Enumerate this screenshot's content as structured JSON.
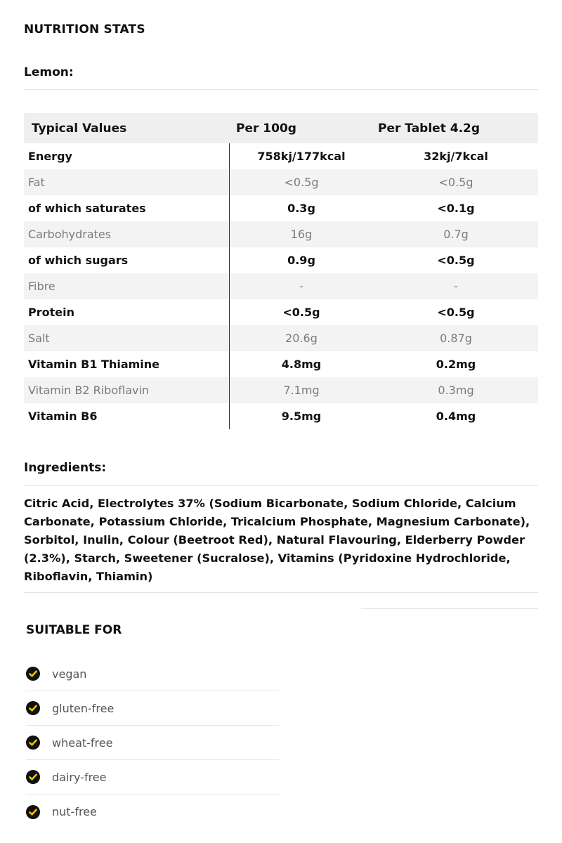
{
  "header": {
    "title": "NUTRITION STATS",
    "variant": "Lemon:"
  },
  "nutrition": {
    "columns": [
      "Typical Values",
      "Per 100g",
      "Per Tablet 4.2g"
    ],
    "rows": [
      {
        "name": "Energy",
        "per100": "758kj/177kcal",
        "perTablet": "32kj/7kcal",
        "style": "bold"
      },
      {
        "name": "Fat",
        "per100": "<0.5g",
        "perTablet": "<0.5g",
        "style": "light"
      },
      {
        "name": "of which saturates",
        "per100": "0.3g",
        "perTablet": "<0.1g",
        "style": "bold"
      },
      {
        "name": "Carbohydrates",
        "per100": "16g",
        "perTablet": "0.7g",
        "style": "light"
      },
      {
        "name": "of which sugars",
        "per100": "0.9g",
        "perTablet": "<0.5g",
        "style": "bold"
      },
      {
        "name": "Fibre",
        "per100": "-",
        "perTablet": "-",
        "style": "light"
      },
      {
        "name": "Protein",
        "per100": "<0.5g",
        "perTablet": "<0.5g",
        "style": "bold"
      },
      {
        "name": "Salt",
        "per100": "20.6g",
        "perTablet": "0.87g",
        "style": "light"
      },
      {
        "name": "Vitamin B1 Thiamine",
        "per100": "4.8mg",
        "perTablet": "0.2mg",
        "style": "bold"
      },
      {
        "name": "Vitamin B2 Riboflavin",
        "per100": "7.1mg",
        "perTablet": "0.3mg",
        "style": "light"
      },
      {
        "name": "Vitamin B6",
        "per100": "9.5mg",
        "perTablet": "0.4mg",
        "style": "bold"
      }
    ]
  },
  "ingredients": {
    "title": "Ingredients:",
    "text": "Citric Acid, Electrolytes 37% (Sodium Bicarbonate, Sodium Chloride, Calcium Carbonate, Potassium Chloride, Tricalcium Phosphate, Magnesium Carbonate), Sorbitol, Inulin, Colour (Beetroot Red), Natural Flavouring, Elderberry Powder (2.3%), Starch, Sweetener (Sucralose), Vitamins (Pyridoxine Hydrochloride, Riboflavin, Thiamin)"
  },
  "suitable": {
    "title": "SUITABLE FOR",
    "icon": "check-circle-icon",
    "check_color": "#f2c200",
    "items": [
      "vegan",
      "gluten-free",
      "wheat-free",
      "dairy-free",
      "nut-free"
    ]
  }
}
